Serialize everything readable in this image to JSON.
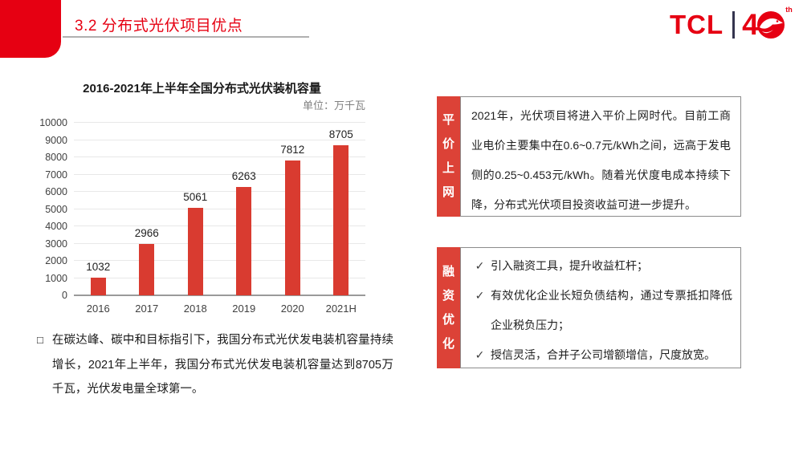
{
  "colors": {
    "accent": "#E60012",
    "bar": "#D93B30",
    "label_block": "#DC4237",
    "body_border": "#8C8C8C",
    "gridline": "#E8E8E8",
    "baseline": "#9A9A9A",
    "text_dark": "#1F1F1F",
    "text_gray": "#7F7F7F"
  },
  "header": {
    "title": "3.2 分布式光伏项目优点",
    "logo": {
      "brand": "TCL",
      "anniversary_number": "4",
      "anniversary_zero_icon": "eagle-circle-icon",
      "suffix": "th"
    }
  },
  "chart_data": {
    "type": "bar",
    "title": "2016-2021年上半年全国分布式光伏装机容量",
    "unit_label": "单位：万千瓦",
    "categories": [
      "2016",
      "2017",
      "2018",
      "2019",
      "2020",
      "2021H"
    ],
    "values": [
      1032,
      2966,
      5061,
      6263,
      7812,
      8705
    ],
    "ylim": [
      0,
      10000
    ],
    "yticks": [
      0,
      1000,
      2000,
      3000,
      4000,
      5000,
      6000,
      7000,
      8000,
      9000,
      10000
    ],
    "grid": "on",
    "value_labels": "on",
    "legend": "none",
    "bar_color": "#D93B30"
  },
  "note": {
    "marker": "□",
    "text": "在碳达峰、碳中和目标指引下，我国分布式光伏发电装机容量持续增长，2021年上半年，我国分布式光伏发电装机容量达到8705万千瓦，光伏发电量全球第一。"
  },
  "boxes": [
    {
      "label": "平价上网",
      "text": "2021年，光伏项目将进入平价上网时代。目前工商业电价主要集中在0.6~0.7元/kWh之间，远高于发电侧的0.25~0.453元/kWh。随着光伏度电成本持续下降，分布式光伏项目投资收益可进一步提升。"
    },
    {
      "label": "融资优化",
      "check_mark": "✓",
      "items": [
        "引入融资工具，提升收益杠杆；",
        "有效优化企业长短负债结构，通过专票抵扣降低企业税负压力；",
        "授信灵活，合并子公司增额增信，尺度放宽。"
      ]
    }
  ]
}
